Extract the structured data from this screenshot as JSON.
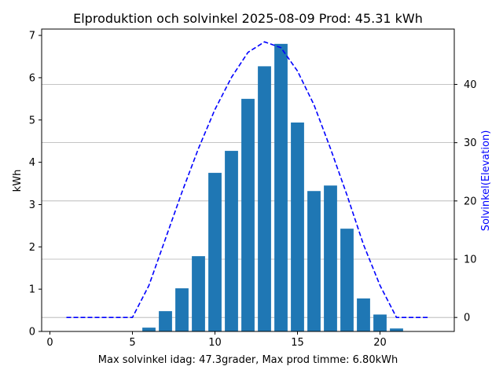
{
  "chart_data": {
    "type": "bar",
    "title": "Elproduktion och solvinkel 2025-08-09 Prod: 45.31 kWh",
    "xlabel": "Max solvinkel idag: 47.3grader, Max prod timme: 6.80kWh",
    "ylabel": "kWh",
    "y2label": "Solvinkel(Elevation)",
    "xlim": [
      -0.5,
      24.5
    ],
    "ylim": [
      0,
      7.15
    ],
    "y2lim": [
      -2.4,
      49.5
    ],
    "x_ticks": [
      0,
      5,
      10,
      15,
      20
    ],
    "y_ticks": [
      0,
      1,
      2,
      3,
      4,
      5,
      6,
      7
    ],
    "y2_ticks": [
      0,
      10,
      20,
      30,
      40
    ],
    "grid": "horizontal lines at right axis ticks",
    "series": [
      {
        "name": "kWh",
        "type": "bar",
        "color": "#1f77b4",
        "x": [
          6,
          7,
          8,
          9,
          10,
          11,
          12,
          13,
          14,
          15,
          16,
          17,
          18,
          19,
          20,
          21
        ],
        "values": [
          0.09,
          0.48,
          1.02,
          1.78,
          3.75,
          4.27,
          5.5,
          6.27,
          6.8,
          4.94,
          3.32,
          3.45,
          2.43,
          0.78,
          0.4,
          0.07
        ]
      },
      {
        "name": "Solvinkel(Elevation)",
        "type": "line",
        "style": "dashed",
        "axis": "right",
        "color": "#0000ff",
        "x": [
          1,
          2,
          3,
          4,
          5,
          6,
          7,
          8,
          9,
          10,
          11,
          12,
          13,
          14,
          15,
          16,
          17,
          18,
          19,
          20,
          21,
          22,
          23
        ],
        "values": [
          0,
          0,
          0,
          0,
          0,
          5.5,
          13.5,
          21.5,
          29.0,
          35.7,
          41.2,
          45.5,
          47.3,
          46.3,
          42.3,
          36.5,
          29.0,
          21.0,
          12.5,
          5.5,
          0,
          0,
          0
        ]
      }
    ]
  }
}
